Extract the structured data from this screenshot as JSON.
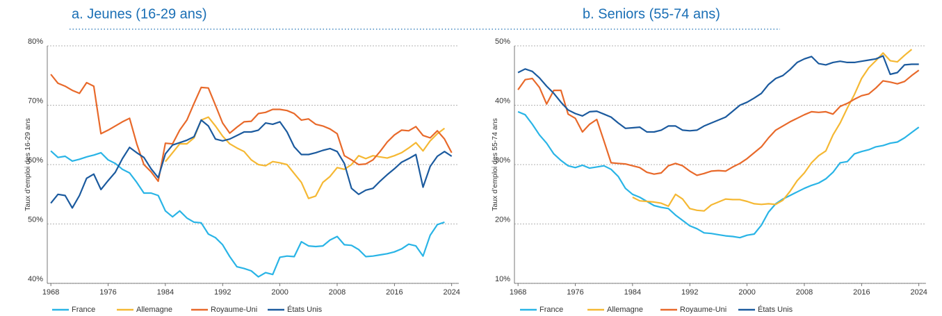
{
  "chart_data": [
    {
      "type": "line",
      "title": "a. Jeunes (16-29 ans)",
      "y_label": "Taux d’emploi des 16-29 ans",
      "x": [
        1968,
        1969,
        1970,
        1971,
        1972,
        1973,
        1974,
        1975,
        1976,
        1977,
        1978,
        1979,
        1980,
        1981,
        1982,
        1983,
        1984,
        1985,
        1986,
        1987,
        1988,
        1989,
        1990,
        1991,
        1992,
        1993,
        1994,
        1995,
        1996,
        1997,
        1998,
        1999,
        2000,
        2001,
        2002,
        2003,
        2004,
        2005,
        2006,
        2007,
        2008,
        2009,
        2010,
        2011,
        2012,
        2013,
        2014,
        2015,
        2016,
        2017,
        2018,
        2019,
        2020,
        2021,
        2022,
        2023,
        2024
      ],
      "xlim": [
        1967.5,
        2025
      ],
      "xticks": [
        1968,
        1976,
        1984,
        1992,
        2000,
        2008,
        2016,
        2024
      ],
      "ylim": [
        40,
        80
      ],
      "yticks": [
        {
          "value": 40,
          "label": "40%"
        },
        {
          "value": 50,
          "label": "50%"
        },
        {
          "value": 60,
          "label": "60%"
        },
        {
          "value": 70,
          "label": "70%"
        },
        {
          "value": 80,
          "label": "80%"
        }
      ],
      "grid": true,
      "series": [
        {
          "name": "France",
          "color": "#29b4e6",
          "values": [
            62.3,
            61.2,
            61.4,
            60.6,
            60.9,
            61.3,
            61.6,
            62.0,
            60.8,
            60.2,
            59.2,
            58.6,
            57.0,
            55.2,
            55.2,
            54.8,
            52.2,
            51.2,
            52.2,
            51.0,
            50.3,
            50.2,
            48.3,
            47.7,
            46.5,
            44.5,
            42.8,
            42.5,
            42.1,
            41.1,
            41.8,
            41.5,
            44.4,
            44.6,
            44.5,
            47.0,
            46.3,
            46.2,
            46.3,
            47.3,
            47.9,
            46.5,
            46.4,
            45.7,
            44.5,
            44.6,
            44.8,
            45.0,
            45.3,
            45.8,
            46.6,
            46.3,
            44.6,
            48.1,
            49.9,
            50.3,
            null
          ]
        },
        {
          "name": "Allemagne",
          "color": "#f5b833",
          "values": [
            null,
            null,
            null,
            null,
            null,
            null,
            null,
            null,
            null,
            null,
            null,
            null,
            null,
            null,
            null,
            null,
            60.5,
            62.0,
            63.5,
            63.5,
            64.5,
            67.5,
            68.0,
            66.5,
            64.8,
            63.5,
            62.8,
            62.2,
            60.8,
            60.0,
            59.8,
            60.5,
            60.3,
            60.0,
            58.5,
            57.0,
            54.3,
            54.7,
            57.0,
            58.0,
            59.5,
            59.2,
            60.0,
            61.5,
            61.0,
            61.5,
            61.3,
            61.1,
            61.5,
            62.0,
            62.8,
            63.7,
            62.3,
            64.0,
            65.2,
            66.1,
            null
          ]
        },
        {
          "name": "Royaume-Uni",
          "color": "#e8692a",
          "values": [
            75.2,
            73.7,
            73.2,
            72.5,
            72.0,
            73.8,
            73.2,
            65.2,
            65.8,
            66.5,
            67.2,
            67.8,
            63.5,
            60.0,
            58.8,
            57.2,
            63.6,
            63.5,
            65.8,
            67.5,
            70.3,
            73.0,
            72.9,
            70.0,
            67.0,
            65.3,
            66.3,
            67.2,
            67.3,
            68.6,
            68.8,
            69.3,
            69.3,
            69.1,
            68.6,
            67.5,
            67.7,
            66.8,
            66.5,
            66.0,
            65.2,
            61.5,
            60.8,
            60.0,
            60.1,
            60.8,
            62.2,
            63.8,
            65.0,
            65.8,
            65.7,
            66.4,
            64.9,
            64.5,
            65.7,
            64.3,
            62.0
          ]
        },
        {
          "name": "États Unis",
          "color": "#1b5a9e",
          "values": [
            53.5,
            55.0,
            54.8,
            52.7,
            54.8,
            57.7,
            58.4,
            55.8,
            57.3,
            58.7,
            61.0,
            62.9,
            62.0,
            61.2,
            59.3,
            57.8,
            61.8,
            63.3,
            63.7,
            64.1,
            64.7,
            67.5,
            66.5,
            64.3,
            64.0,
            64.3,
            64.9,
            65.5,
            65.5,
            65.8,
            67.0,
            66.8,
            67.2,
            65.5,
            63.0,
            61.7,
            61.7,
            62.0,
            62.4,
            62.7,
            62.2,
            60.2,
            56.0,
            55.0,
            55.7,
            56.0,
            57.2,
            58.3,
            59.3,
            60.4,
            61.0,
            61.7,
            56.2,
            59.7,
            61.4,
            62.2,
            61.4
          ]
        }
      ]
    },
    {
      "type": "line",
      "title": "b. Seniors (55-74 ans)",
      "y_label": "Taux d’emploi des 55-74 ans",
      "x": [
        1968,
        1969,
        1970,
        1971,
        1972,
        1973,
        1974,
        1975,
        1976,
        1977,
        1978,
        1979,
        1980,
        1981,
        1982,
        1983,
        1984,
        1985,
        1986,
        1987,
        1988,
        1989,
        1990,
        1991,
        1992,
        1993,
        1994,
        1995,
        1996,
        1997,
        1998,
        1999,
        2000,
        2001,
        2002,
        2003,
        2004,
        2005,
        2006,
        2007,
        2008,
        2009,
        2010,
        2011,
        2012,
        2013,
        2014,
        2015,
        2016,
        2017,
        2018,
        2019,
        2020,
        2021,
        2022,
        2023,
        2024
      ],
      "xlim": [
        1967.5,
        2025
      ],
      "xticks": [
        1968,
        1976,
        1984,
        1992,
        2000,
        2008,
        2016,
        2024
      ],
      "ylim": [
        10,
        50
      ],
      "yticks": [
        {
          "value": 10,
          "label": "10%"
        },
        {
          "value": 20,
          "label": "20%"
        },
        {
          "value": 30,
          "label": "30%"
        },
        {
          "value": 40,
          "label": "40%"
        },
        {
          "value": 50,
          "label": "50%"
        }
      ],
      "grid": true,
      "series": [
        {
          "name": "France",
          "color": "#29b4e6",
          "values": [
            38.9,
            38.4,
            36.8,
            35.0,
            33.6,
            31.8,
            30.7,
            29.8,
            29.5,
            29.9,
            29.4,
            29.6,
            29.8,
            29.2,
            28.0,
            26.0,
            25.0,
            24.5,
            23.8,
            23.1,
            22.8,
            22.6,
            21.5,
            20.6,
            19.7,
            19.2,
            18.5,
            18.4,
            18.2,
            18.0,
            17.9,
            17.7,
            18.1,
            18.3,
            19.8,
            22.0,
            23.4,
            24.2,
            24.8,
            25.4,
            26.0,
            26.5,
            26.9,
            27.6,
            28.7,
            30.3,
            30.5,
            31.8,
            32.2,
            32.5,
            33.0,
            33.2,
            33.6,
            33.8,
            34.5,
            35.4,
            36.3
          ]
        },
        {
          "name": "Allemagne",
          "color": "#f5b833",
          "values": [
            null,
            null,
            null,
            null,
            null,
            null,
            null,
            null,
            null,
            null,
            null,
            null,
            null,
            null,
            null,
            null,
            24.5,
            23.9,
            23.8,
            23.7,
            23.5,
            23.0,
            25.0,
            24.2,
            22.6,
            22.3,
            22.2,
            23.2,
            23.7,
            24.2,
            24.1,
            24.1,
            23.8,
            23.4,
            23.3,
            23.4,
            23.3,
            24.0,
            25.5,
            27.3,
            28.6,
            30.3,
            31.5,
            32.3,
            35.0,
            37.0,
            39.5,
            41.8,
            44.5,
            46.3,
            47.5,
            48.8,
            47.5,
            47.3,
            48.4,
            49.4,
            null
          ]
        },
        {
          "name": "Royaume-Uni",
          "color": "#e8692a",
          "values": [
            42.6,
            44.3,
            44.5,
            43.0,
            40.2,
            42.5,
            42.5,
            38.5,
            37.8,
            35.5,
            36.8,
            37.6,
            34.0,
            30.3,
            30.2,
            30.1,
            29.8,
            29.5,
            28.7,
            28.4,
            28.6,
            29.8,
            30.2,
            29.8,
            28.9,
            28.2,
            28.5,
            28.9,
            29.0,
            28.9,
            29.6,
            30.2,
            31.0,
            32.0,
            33.0,
            34.5,
            35.8,
            36.5,
            37.2,
            37.8,
            38.4,
            38.9,
            38.8,
            38.9,
            38.5,
            39.8,
            40.3,
            41.0,
            41.6,
            41.9,
            42.9,
            44.1,
            43.9,
            43.6,
            44.0,
            45.0,
            45.9
          ]
        },
        {
          "name": "États Unis",
          "color": "#1b5a9e",
          "values": [
            45.5,
            46.1,
            45.7,
            44.6,
            43.2,
            42.0,
            40.5,
            39.2,
            38.6,
            38.2,
            38.9,
            39.0,
            38.5,
            38.0,
            37.0,
            36.1,
            36.2,
            36.3,
            35.5,
            35.5,
            35.8,
            36.5,
            36.5,
            35.8,
            35.7,
            35.8,
            36.5,
            37.0,
            37.5,
            38.0,
            39.0,
            40.0,
            40.5,
            41.2,
            42.0,
            43.5,
            44.5,
            45.0,
            46.0,
            47.2,
            47.8,
            48.2,
            47.0,
            46.8,
            47.2,
            47.4,
            47.2,
            47.2,
            47.4,
            47.6,
            47.8,
            48.3,
            45.2,
            45.5,
            46.8,
            46.9,
            46.9
          ]
        }
      ]
    }
  ]
}
